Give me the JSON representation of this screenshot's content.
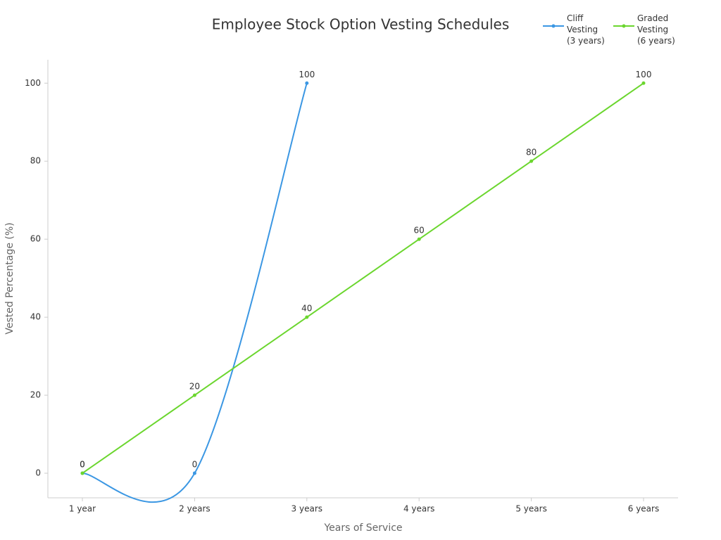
{
  "chart_data": {
    "type": "line",
    "title": "Employee Stock Option Vesting Schedules",
    "x_label": "Years of Service",
    "y_label": "Vested Percentage (%)",
    "categories": [
      "1 year",
      "2 years",
      "3 years",
      "4 years",
      "5 years",
      "6 years"
    ],
    "series": [
      {
        "name": "Cliff Vesting (3 years)",
        "color": "#3b97e3",
        "values": [
          0,
          0,
          100,
          null,
          null,
          null
        ]
      },
      {
        "name": "Graded Vesting (6 years)",
        "color": "#6bd62e",
        "values": [
          0,
          20,
          40,
          60,
          80,
          100
        ]
      }
    ],
    "ylim": [
      -6.3,
      106
    ],
    "yticks": [
      0,
      20,
      40,
      60,
      80,
      100
    ],
    "smooth": true,
    "legend": "top-right"
  }
}
